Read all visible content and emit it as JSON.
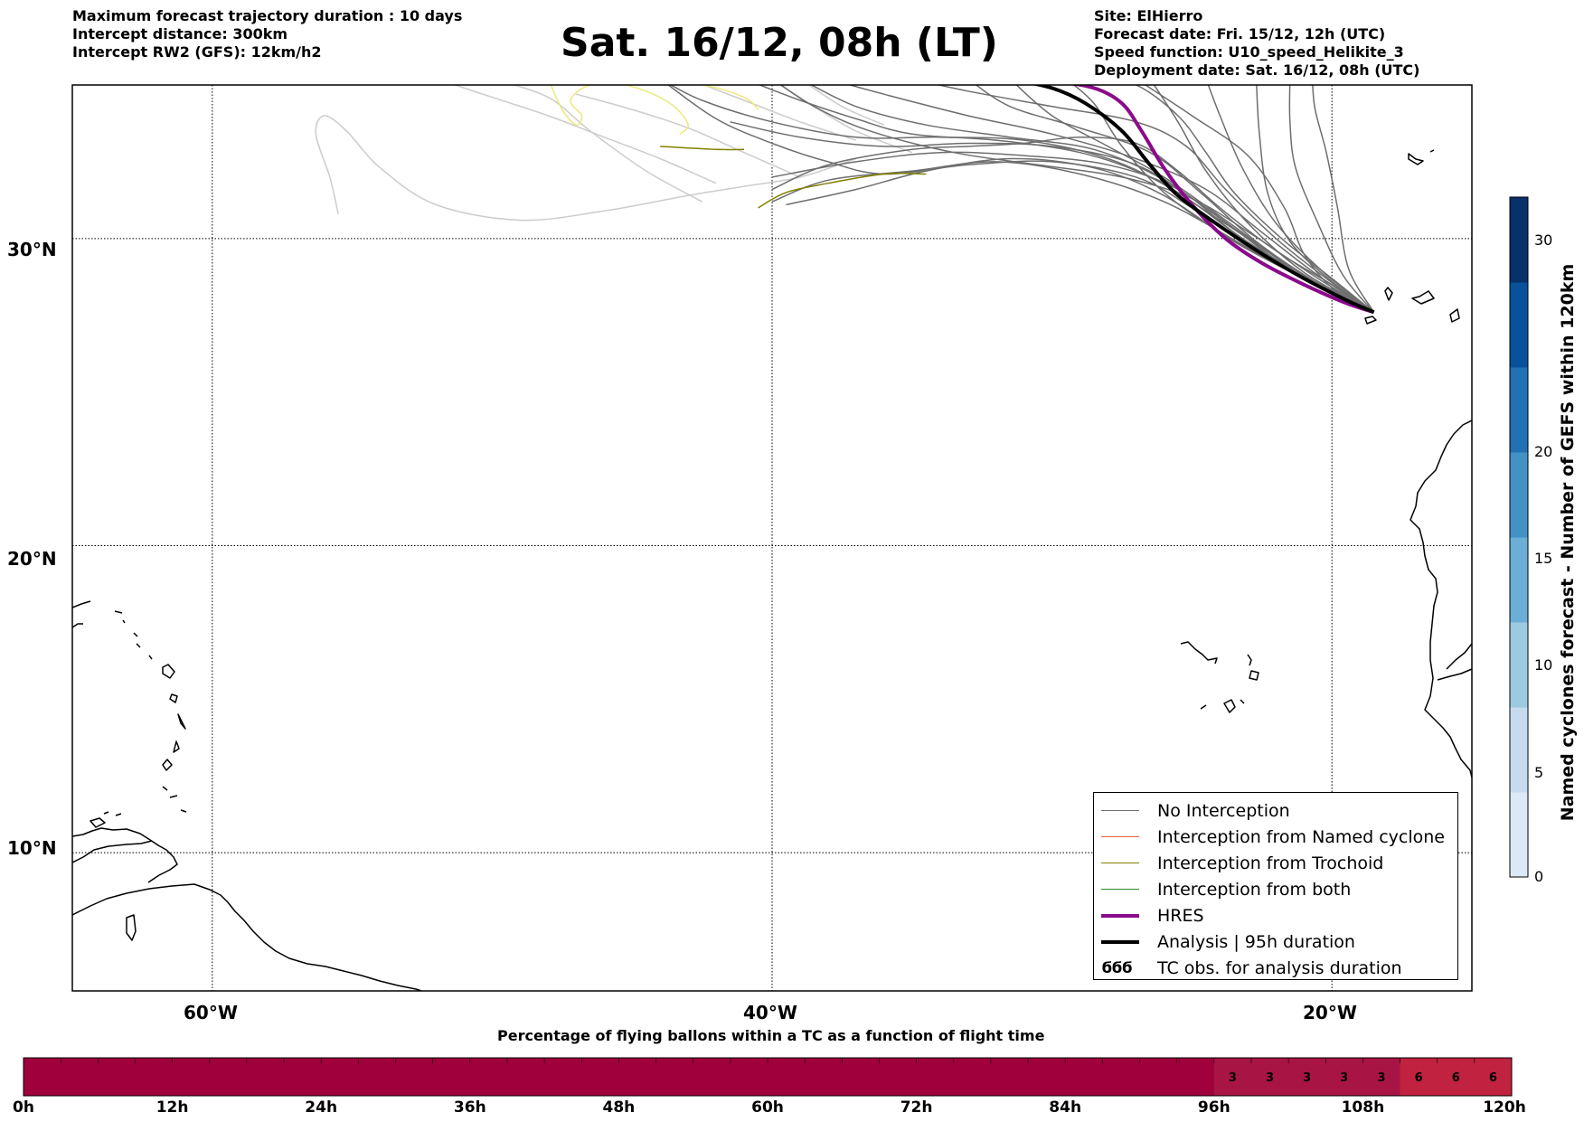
{
  "header_left": [
    "Maximum forecast trajectory duration : 10 days",
    "Intercept distance: 300km",
    "Intercept RW2 (GFS):  12km/h2"
  ],
  "title": "Sat. 16/12, 08h (LT)",
  "header_right": [
    "Site: ElHierro",
    "Forecast date: Fri. 15/12, 12h (UTC)",
    "Speed function: U10_speed_Helikite_3",
    "Deployment date: Sat. 16/12, 08h (UTC)"
  ],
  "map": {
    "lat_labels": [
      "30°N",
      "20°N",
      "10°N"
    ],
    "lon_labels": [
      "60°W",
      "40°W",
      "20°W"
    ],
    "lat_range": [
      5.5,
      35
    ],
    "lon_range": [
      -65,
      -15
    ],
    "launch_site": {
      "name": "ElHierro",
      "lon": -18.0,
      "lat": 27.6
    }
  },
  "legend": [
    {
      "label": "No Interception",
      "color": "#707070",
      "width": 1.5
    },
    {
      "label": "Interception from Named cyclone",
      "color": "#e8622c",
      "width": 1.5
    },
    {
      "label": "Interception from Trochoid",
      "color": "#808000",
      "width": 1.5
    },
    {
      "label": "Interception from both",
      "color": "#2e8b2e",
      "width": 1.5
    },
    {
      "label": "HRES",
      "color": "#8b0a8b",
      "width": 4
    },
    {
      "label": "Analysis | 95h duration",
      "color": "#000000",
      "width": 4
    },
    {
      "label": "TC obs. for analysis duration",
      "symbol": "ϭϭϭ"
    }
  ],
  "colorbar": {
    "title": "Named cyclones forecast - Number of GEFS within 120km",
    "ticks": [
      "0",
      "5",
      "10",
      "15",
      "20",
      "30"
    ],
    "colors": [
      "#dbe8f5",
      "#c6dbef",
      "#9ecae1",
      "#6baed6",
      "#4292c6",
      "#2171b5",
      "#08519c",
      "#08306b"
    ]
  },
  "timebar": {
    "title": "Percentage of flying ballons within a TC as a function of flight time",
    "tick_labels": [
      "0h",
      "12h",
      "24h",
      "36h",
      "48h",
      "60h",
      "72h",
      "84h",
      "96h",
      "108h",
      "120h"
    ],
    "percentages": [
      0,
      0,
      0,
      0,
      0,
      0,
      0,
      0,
      0,
      0,
      0,
      0,
      0,
      0,
      0,
      0,
      0,
      0,
      0,
      0,
      0,
      0,
      0,
      0,
      0,
      0,
      0,
      0,
      0,
      0,
      0,
      0,
      3,
      3,
      3,
      3,
      3,
      6,
      6,
      6
    ],
    "colors": {
      "0": "#a0003c",
      "3": "#a81544",
      "6": "#c0223f"
    }
  },
  "chart_data": {
    "type": "map-trajectories",
    "trajectories": {
      "analysis": [
        [
          -18.5,
          27.6
        ],
        [
          -19.5,
          28.0
        ],
        [
          -21,
          28.7
        ],
        [
          -22.5,
          29.5
        ],
        [
          -24,
          30.4
        ],
        [
          -25.5,
          31.4
        ],
        [
          -26.5,
          32.4
        ],
        [
          -27.5,
          33.5
        ],
        [
          -28.8,
          34.4
        ],
        [
          -30,
          34.9
        ],
        [
          -31.5,
          35.2
        ]
      ],
      "hres": [
        [
          -18.5,
          27.6
        ],
        [
          -19.5,
          27.9
        ],
        [
          -21,
          28.5
        ],
        [
          -22.5,
          29.2
        ],
        [
          -23.8,
          30.0
        ],
        [
          -25,
          31.1
        ],
        [
          -26,
          32.3
        ],
        [
          -26.8,
          33.5
        ],
        [
          -27.5,
          34.4
        ],
        [
          -28.5,
          34.9
        ],
        [
          -30,
          35.1
        ],
        [
          -33,
          35.2
        ]
      ],
      "trochoid": [
        [
          [
            -40.5,
            31.0
          ],
          [
            -39.5,
            31.5
          ],
          [
            -38,
            31.8
          ],
          [
            -36,
            32.1
          ],
          [
            -34.5,
            32.1
          ]
        ],
        [
          [
            -44,
            33.0
          ],
          [
            -42,
            32.9
          ],
          [
            -41,
            32.9
          ]
        ]
      ],
      "yellow": [
        [
          [
            -48,
            35.2
          ],
          [
            -47.5,
            34.2
          ],
          [
            -47,
            33.7
          ],
          [
            -46.8,
            34.0
          ],
          [
            -47.2,
            34.5
          ],
          [
            -46.5,
            35.0
          ],
          [
            -45,
            35.1
          ],
          [
            -42.5,
            35.0
          ],
          [
            -41,
            34.6
          ],
          [
            -40.5,
            34.2
          ]
        ],
        [
          [
            -46,
            35.2
          ],
          [
            -44.5,
            34.8
          ],
          [
            -43.5,
            34.3
          ],
          [
            -43,
            33.7
          ],
          [
            -43.3,
            33.4
          ]
        ]
      ],
      "light_gray": [
        [
          [
            -55.5,
            30.8
          ],
          [
            -55.8,
            32.0
          ],
          [
            -56.3,
            33.4
          ],
          [
            -56,
            34.0
          ],
          [
            -55.2,
            33.5
          ],
          [
            -54,
            32.3
          ],
          [
            -52,
            31.1
          ],
          [
            -49,
            30.6
          ],
          [
            -46,
            30.9
          ],
          [
            -43,
            31.4
          ],
          [
            -41,
            31.7
          ],
          [
            -39,
            32.0
          ],
          [
            -37,
            32.6
          ]
        ],
        [
          [
            -42.5,
            31.2
          ],
          [
            -44.5,
            32.2
          ],
          [
            -46.5,
            33.5
          ],
          [
            -48,
            34.6
          ],
          [
            -50,
            35.2
          ]
        ],
        [
          [
            -42,
            31.8
          ],
          [
            -44,
            32.6
          ],
          [
            -46,
            33.3
          ],
          [
            -48,
            34.0
          ],
          [
            -50,
            34.6
          ],
          [
            -52,
            35.2
          ]
        ],
        [
          [
            -39,
            32.0
          ],
          [
            -41,
            32.8
          ],
          [
            -43,
            33.6
          ],
          [
            -45,
            34.2
          ],
          [
            -47,
            34.7
          ]
        ],
        [
          [
            -37,
            33.2
          ],
          [
            -39,
            33.8
          ],
          [
            -41,
            34.5
          ],
          [
            -43,
            35.2
          ]
        ],
        [
          [
            -36,
            33.7
          ],
          [
            -37.5,
            34.3
          ],
          [
            -39,
            35.2
          ]
        ],
        [
          [
            -35,
            32.8
          ],
          [
            -37,
            33.5
          ],
          [
            -38.5,
            34.3
          ],
          [
            -40,
            35.2
          ]
        ]
      ],
      "gray": [
        [
          [
            -18.5,
            27.6
          ],
          [
            -20,
            28.3
          ],
          [
            -22,
            29.2
          ],
          [
            -24,
            30.2
          ],
          [
            -26,
            31.5
          ],
          [
            -27.5,
            33.0
          ],
          [
            -28.5,
            34.4
          ],
          [
            -29.5,
            35.2
          ]
        ],
        [
          [
            -18.5,
            27.6
          ],
          [
            -20,
            28.5
          ],
          [
            -22,
            29.6
          ],
          [
            -24,
            31.0
          ],
          [
            -25.5,
            32.2
          ],
          [
            -27,
            33.1
          ],
          [
            -29,
            33.3
          ],
          [
            -31,
            33.1
          ],
          [
            -33,
            33.0
          ],
          [
            -35,
            32.9
          ],
          [
            -38,
            32.4
          ],
          [
            -40,
            31.6
          ]
        ],
        [
          [
            -18.5,
            27.6
          ],
          [
            -20,
            28.6
          ],
          [
            -21.5,
            29.9
          ],
          [
            -22.3,
            31.5
          ],
          [
            -22.6,
            33.5
          ],
          [
            -22.7,
            35.2
          ]
        ],
        [
          [
            -18.5,
            27.6
          ],
          [
            -19.6,
            28.8
          ],
          [
            -20.5,
            30.5
          ],
          [
            -21.3,
            32.3
          ],
          [
            -21.5,
            33.8
          ],
          [
            -21.5,
            35.2
          ]
        ],
        [
          [
            -18.5,
            27.6
          ],
          [
            -19.4,
            29.0
          ],
          [
            -19.8,
            31.0
          ],
          [
            -20.2,
            32.8
          ],
          [
            -20.6,
            34.2
          ],
          [
            -20.7,
            35.2
          ]
        ],
        [
          [
            -18.5,
            27.6
          ],
          [
            -20.5,
            28.5
          ],
          [
            -23,
            29.8
          ],
          [
            -25,
            31.0
          ],
          [
            -27,
            32.0
          ],
          [
            -30,
            32.5
          ],
          [
            -33,
            32.4
          ],
          [
            -36,
            32.1
          ],
          [
            -38,
            32.5
          ],
          [
            -40,
            33.1
          ],
          [
            -42,
            33.9
          ],
          [
            -44,
            35.2
          ]
        ],
        [
          [
            -18.5,
            27.6
          ],
          [
            -21,
            28.7
          ],
          [
            -23.5,
            30.2
          ],
          [
            -25.5,
            31.6
          ],
          [
            -28,
            32.4
          ],
          [
            -31,
            32.7
          ],
          [
            -34,
            32.8
          ],
          [
            -37,
            32.5
          ],
          [
            -40,
            32.0
          ]
        ],
        [
          [
            -18.5,
            27.6
          ],
          [
            -21,
            28.9
          ],
          [
            -23,
            30.5
          ],
          [
            -24.5,
            32.2
          ],
          [
            -25.5,
            33.8
          ],
          [
            -26.5,
            35.2
          ]
        ],
        [
          [
            -18.5,
            27.6
          ],
          [
            -20.5,
            28.8
          ],
          [
            -22.5,
            30.2
          ],
          [
            -24.5,
            31.6
          ],
          [
            -27,
            32.6
          ],
          [
            -30,
            33.4
          ],
          [
            -33,
            34.0
          ],
          [
            -36,
            34.7
          ],
          [
            -38,
            35.2
          ]
        ],
        [
          [
            -18.5,
            27.6
          ],
          [
            -20.8,
            28.6
          ],
          [
            -23,
            29.7
          ],
          [
            -26,
            31.2
          ],
          [
            -29,
            32.1
          ],
          [
            -32,
            32.5
          ],
          [
            -35,
            32.2
          ],
          [
            -38,
            31.9
          ],
          [
            -40,
            31.2
          ]
        ],
        [
          [
            -18.5,
            27.6
          ],
          [
            -20.2,
            28.7
          ],
          [
            -22,
            30.0
          ],
          [
            -23.8,
            31.6
          ],
          [
            -25.2,
            33.0
          ],
          [
            -27,
            33.8
          ],
          [
            -30,
            34.3
          ],
          [
            -33,
            34.8
          ],
          [
            -35,
            35.2
          ]
        ],
        [
          [
            -18.5,
            27.6
          ],
          [
            -21,
            28.8
          ],
          [
            -24,
            30.6
          ],
          [
            -26.5,
            32.0
          ],
          [
            -29,
            32.8
          ],
          [
            -32,
            33.2
          ],
          [
            -35,
            33.4
          ],
          [
            -37,
            33.9
          ],
          [
            -39,
            34.5
          ],
          [
            -41,
            35.2
          ]
        ],
        [
          [
            -18.5,
            27.6
          ],
          [
            -20,
            28.4
          ],
          [
            -21,
            29.5
          ],
          [
            -21.7,
            31.0
          ],
          [
            -23,
            32.7
          ],
          [
            -25,
            34.0
          ],
          [
            -27,
            35.2
          ]
        ],
        [
          [
            -18.5,
            27.6
          ],
          [
            -21.5,
            29.0
          ],
          [
            -24.5,
            31.0
          ],
          [
            -27,
            32.4
          ],
          [
            -30,
            33.0
          ],
          [
            -33,
            33.1
          ],
          [
            -36,
            33.0
          ],
          [
            -39,
            33.3
          ],
          [
            -41.5,
            33.8
          ]
        ],
        [
          [
            -18.5,
            27.6
          ],
          [
            -20.5,
            28.7
          ],
          [
            -22.8,
            30.1
          ],
          [
            -25,
            31.3
          ],
          [
            -27.5,
            32.0
          ],
          [
            -30.5,
            32.4
          ],
          [
            -33.5,
            32.8
          ],
          [
            -36.5,
            33.5
          ],
          [
            -38.5,
            34.3
          ],
          [
            -40,
            35.2
          ]
        ],
        [
          [
            -18.5,
            27.6
          ],
          [
            -20,
            28.7
          ],
          [
            -21.8,
            30.0
          ],
          [
            -23.5,
            31.5
          ],
          [
            -24.5,
            32.8
          ],
          [
            -25.5,
            34.0
          ],
          [
            -27,
            35.0
          ],
          [
            -28.5,
            35.2
          ]
        ],
        [
          [
            -18.5,
            27.6
          ],
          [
            -20.8,
            28.7
          ],
          [
            -23.2,
            30.0
          ],
          [
            -25.5,
            31.5
          ],
          [
            -28,
            32.6
          ],
          [
            -31,
            33.2
          ],
          [
            -34,
            33.3
          ],
          [
            -37,
            33.3
          ],
          [
            -40,
            33.8
          ],
          [
            -42.5,
            34.5
          ],
          [
            -44,
            35.2
          ]
        ],
        [
          [
            -18.5,
            27.6
          ],
          [
            -21,
            28.7
          ],
          [
            -23.5,
            29.9
          ],
          [
            -26,
            31.4
          ],
          [
            -28.5,
            32.3
          ],
          [
            -31.5,
            32.6
          ],
          [
            -34.5,
            32.2
          ],
          [
            -37,
            31.6
          ],
          [
            -39.5,
            31.1
          ]
        ],
        [
          [
            -18.5,
            27.6
          ],
          [
            -21,
            28.8
          ],
          [
            -23.6,
            30.4
          ],
          [
            -26,
            31.9
          ],
          [
            -28.5,
            32.9
          ],
          [
            -31.5,
            33.3
          ],
          [
            -34.5,
            33.7
          ],
          [
            -37,
            34.3
          ],
          [
            -39,
            35.2
          ]
        ],
        [
          [
            -18.5,
            27.6
          ],
          [
            -20.3,
            28.9
          ],
          [
            -22,
            30.5
          ],
          [
            -23.2,
            32.3
          ],
          [
            -24,
            34.0
          ],
          [
            -24.5,
            35.2
          ]
        ],
        [
          [
            -18.5,
            27.6
          ],
          [
            -20.6,
            28.6
          ],
          [
            -22.7,
            29.9
          ],
          [
            -24.7,
            31.5
          ],
          [
            -26.5,
            32.8
          ],
          [
            -29,
            33.6
          ],
          [
            -31.5,
            34.3
          ],
          [
            -33,
            35.2
          ]
        ],
        [
          [
            -18.5,
            27.6
          ],
          [
            -21.2,
            28.9
          ],
          [
            -23.8,
            30.6
          ],
          [
            -26,
            32.0
          ],
          [
            -28,
            33.0
          ],
          [
            -30,
            34.0
          ],
          [
            -31.5,
            35.2
          ]
        ]
      ]
    },
    "grid": {
      "lat": [
        30,
        20,
        10
      ],
      "lon": [
        -60,
        -40,
        -20
      ]
    }
  }
}
